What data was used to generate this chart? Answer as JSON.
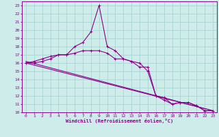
{
  "xlabel": "Windchill (Refroidissement éolien,°C)",
  "background_color": "#ceecea",
  "grid_color": "#aad4d1",
  "line_color": "#880088",
  "xlim": [
    -0.5,
    23.5
  ],
  "ylim": [
    10,
    23.5
  ],
  "xticks": [
    0,
    1,
    2,
    3,
    4,
    5,
    6,
    7,
    8,
    9,
    10,
    11,
    12,
    13,
    14,
    15,
    16,
    17,
    18,
    19,
    20,
    21,
    22,
    23
  ],
  "yticks": [
    10,
    11,
    12,
    13,
    14,
    15,
    16,
    17,
    18,
    19,
    20,
    21,
    22,
    23
  ],
  "series1_x": [
    0,
    1,
    2,
    3,
    4,
    5,
    6,
    7,
    8,
    9,
    10,
    11,
    12,
    13,
    14,
    15,
    16,
    17,
    18,
    19,
    20,
    21,
    22,
    23
  ],
  "series1_y": [
    16.0,
    16.2,
    16.5,
    16.8,
    17.0,
    17.0,
    17.2,
    17.5,
    17.5,
    17.5,
    17.2,
    16.5,
    16.5,
    16.2,
    15.5,
    15.5,
    12.0,
    11.5,
    11.0,
    11.2,
    11.2,
    10.8,
    10.2,
    10.2
  ],
  "series2_x": [
    0,
    1,
    2,
    3,
    4,
    5,
    6,
    7,
    8,
    9,
    10,
    11,
    12,
    13,
    14,
    15,
    16,
    17,
    18,
    19,
    20,
    21,
    22,
    23
  ],
  "series2_y": [
    16.0,
    16.0,
    16.2,
    16.5,
    17.0,
    17.0,
    18.0,
    18.5,
    19.8,
    23.0,
    18.0,
    17.5,
    16.5,
    16.2,
    16.0,
    15.0,
    12.0,
    11.8,
    11.0,
    11.2,
    11.2,
    10.8,
    10.2,
    10.2
  ],
  "series3_x": [
    0,
    23
  ],
  "series3_y": [
    16.0,
    10.2
  ],
  "series4_x": [
    0,
    23
  ],
  "series4_y": [
    16.2,
    10.2
  ]
}
